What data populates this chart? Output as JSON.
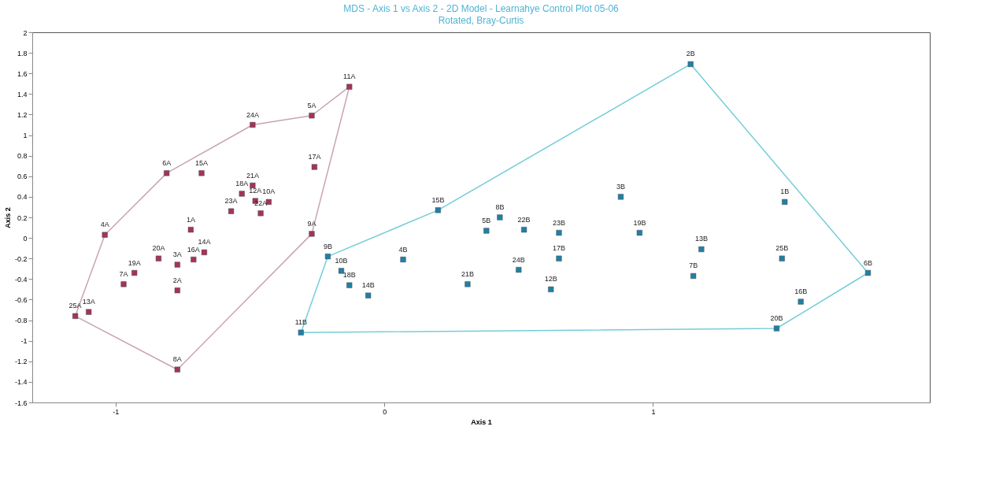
{
  "chart_data": {
    "type": "scatter",
    "title": "MDS - Axis 1 vs Axis 2 - 2D Model - Learnahye Control Plot 05-06",
    "subtitle": "Rotated, Bray-Curtis",
    "xlabel": "Axis 1",
    "ylabel": "Axis 2",
    "xlim": [
      -1.31,
      2.03
    ],
    "ylim": [
      -1.6,
      2
    ],
    "xticks": [
      -1,
      0,
      1
    ],
    "yticks": [
      -1.6,
      -1.4,
      -1.2,
      -1,
      -0.8,
      -0.6,
      -0.4,
      -0.2,
      0,
      0.2,
      0.4,
      0.6,
      0.8,
      1,
      1.2,
      1.4,
      1.6,
      1.8,
      2
    ],
    "grid": false,
    "series": [
      {
        "type": "line",
        "color": "#c9a3b4",
        "line_style": "solid",
        "x": [
          -1.15,
          -1.04,
          -0.81,
          -0.49,
          -0.27,
          -0.13
        ],
        "values": [
          -0.76,
          0.03,
          0.63,
          1.1,
          1.19,
          1.47
        ]
      },
      {
        "type": "line",
        "color": "#c9a3b4",
        "line_style": "solid",
        "x": [
          -1.15,
          -0.77,
          -0.27,
          -0.13
        ],
        "values": [
          -0.76,
          -1.28,
          0.04,
          1.47
        ]
      },
      {
        "type": "line",
        "color": "#74cdd8",
        "line_style": "solid",
        "x": [
          -0.31,
          -0.21,
          0.2,
          1.14,
          1.8
        ],
        "values": [
          -0.92,
          -0.18,
          0.27,
          1.69,
          -0.34
        ]
      },
      {
        "type": "line",
        "color": "#74cdd8",
        "line_style": "solid",
        "x": [
          -0.31,
          1.46,
          1.8
        ],
        "values": [
          -0.92,
          -0.88,
          -0.34
        ]
      },
      {
        "color": "#a3325e",
        "marker": "square",
        "x": [
          -0.13,
          -0.27,
          -0.49,
          -0.81,
          -0.68,
          -0.26,
          -0.49,
          -0.53,
          -0.48,
          -0.43,
          -0.57,
          -0.46,
          -1.04,
          -0.27,
          -0.72,
          -0.67,
          -0.71,
          -0.84,
          -0.77,
          -0.93,
          -0.77,
          -0.97,
          -1.15,
          -1.1,
          -0.77
        ],
        "values": [
          1.47,
          1.19,
          1.1,
          0.63,
          0.63,
          0.69,
          0.51,
          0.43,
          0.36,
          0.35,
          0.26,
          0.24,
          0.03,
          0.04,
          0.08,
          -0.14,
          -0.21,
          -0.2,
          -0.26,
          -0.34,
          -0.51,
          -0.45,
          -0.76,
          -0.72,
          -1.28
        ]
      },
      {
        "color": "#1f7fa6",
        "marker": "square",
        "x": [
          1.14,
          0.2,
          -0.21,
          -0.16,
          -0.13,
          -0.06,
          0.07,
          0.31,
          0.38,
          0.43,
          0.52,
          0.65,
          0.65,
          0.5,
          0.62,
          0.88,
          -0.31,
          0.95,
          1.18,
          1.15,
          1.49,
          1.48,
          1.8,
          1.55,
          1.46
        ],
        "values": [
          1.69,
          0.27,
          -0.18,
          -0.32,
          -0.46,
          -0.56,
          -0.21,
          -0.45,
          0.07,
          0.2,
          0.08,
          0.05,
          -0.2,
          -0.31,
          -0.5,
          0.4,
          -0.92,
          0.05,
          -0.11,
          -0.37,
          0.35,
          -0.2,
          -0.34,
          -0.62,
          -0.88
        ]
      }
    ],
    "annotations": [
      {
        "text": "11A",
        "x": -0.13,
        "y": 1.47
      },
      {
        "text": "5A",
        "x": -0.27,
        "y": 1.19
      },
      {
        "text": "24A",
        "x": -0.49,
        "y": 1.1
      },
      {
        "text": "6A",
        "x": -0.81,
        "y": 0.63
      },
      {
        "text": "15A",
        "x": -0.68,
        "y": 0.63
      },
      {
        "text": "17A",
        "x": -0.26,
        "y": 0.69
      },
      {
        "text": "21A",
        "x": -0.49,
        "y": 0.51
      },
      {
        "text": "18A",
        "x": -0.53,
        "y": 0.43
      },
      {
        "text": "12A",
        "x": -0.48,
        "y": 0.36
      },
      {
        "text": "10A",
        "x": -0.43,
        "y": 0.35
      },
      {
        "text": "23A",
        "x": -0.57,
        "y": 0.26
      },
      {
        "text": "22A",
        "x": -0.46,
        "y": 0.24
      },
      {
        "text": "4A",
        "x": -1.04,
        "y": 0.03
      },
      {
        "text": "9A",
        "x": -0.27,
        "y": 0.04
      },
      {
        "text": "1A",
        "x": -0.72,
        "y": 0.08
      },
      {
        "text": "14A",
        "x": -0.67,
        "y": -0.14
      },
      {
        "text": "16A",
        "x": -0.71,
        "y": -0.21
      },
      {
        "text": "20A",
        "x": -0.84,
        "y": -0.2
      },
      {
        "text": "3A",
        "x": -0.77,
        "y": -0.26
      },
      {
        "text": "19A",
        "x": -0.93,
        "y": -0.34
      },
      {
        "text": "2A",
        "x": -0.77,
        "y": -0.51
      },
      {
        "text": "7A",
        "x": -0.97,
        "y": -0.45
      },
      {
        "text": "25A",
        "x": -1.15,
        "y": -0.76
      },
      {
        "text": "13A",
        "x": -1.1,
        "y": -0.72
      },
      {
        "text": "8A",
        "x": -0.77,
        "y": -1.28
      },
      {
        "text": "2B",
        "x": 1.14,
        "y": 1.69
      },
      {
        "text": "15B",
        "x": 0.2,
        "y": 0.27
      },
      {
        "text": "9B",
        "x": -0.21,
        "y": -0.18
      },
      {
        "text": "10B",
        "x": -0.16,
        "y": -0.32
      },
      {
        "text": "18B",
        "x": -0.13,
        "y": -0.46
      },
      {
        "text": "14B",
        "x": -0.06,
        "y": -0.56
      },
      {
        "text": "4B",
        "x": 0.07,
        "y": -0.21
      },
      {
        "text": "21B",
        "x": 0.31,
        "y": -0.45
      },
      {
        "text": "5B",
        "x": 0.38,
        "y": 0.07
      },
      {
        "text": "8B",
        "x": 0.43,
        "y": 0.2
      },
      {
        "text": "22B",
        "x": 0.52,
        "y": 0.08
      },
      {
        "text": "23B",
        "x": 0.65,
        "y": 0.05
      },
      {
        "text": "17B",
        "x": 0.65,
        "y": -0.2
      },
      {
        "text": "24B",
        "x": 0.5,
        "y": -0.31
      },
      {
        "text": "12B",
        "x": 0.62,
        "y": -0.5
      },
      {
        "text": "3B",
        "x": 0.88,
        "y": 0.4
      },
      {
        "text": "11B",
        "x": -0.31,
        "y": -0.92
      },
      {
        "text": "19B",
        "x": 0.95,
        "y": 0.05
      },
      {
        "text": "13B",
        "x": 1.18,
        "y": -0.11
      },
      {
        "text": "7B",
        "x": 1.15,
        "y": -0.37
      },
      {
        "text": "1B",
        "x": 1.49,
        "y": 0.35
      },
      {
        "text": "25B",
        "x": 1.48,
        "y": -0.2
      },
      {
        "text": "6B",
        "x": 1.8,
        "y": -0.34
      },
      {
        "text": "16B",
        "x": 1.55,
        "y": -0.62
      },
      {
        "text": "20B",
        "x": 1.46,
        "y": -0.88
      }
    ]
  }
}
